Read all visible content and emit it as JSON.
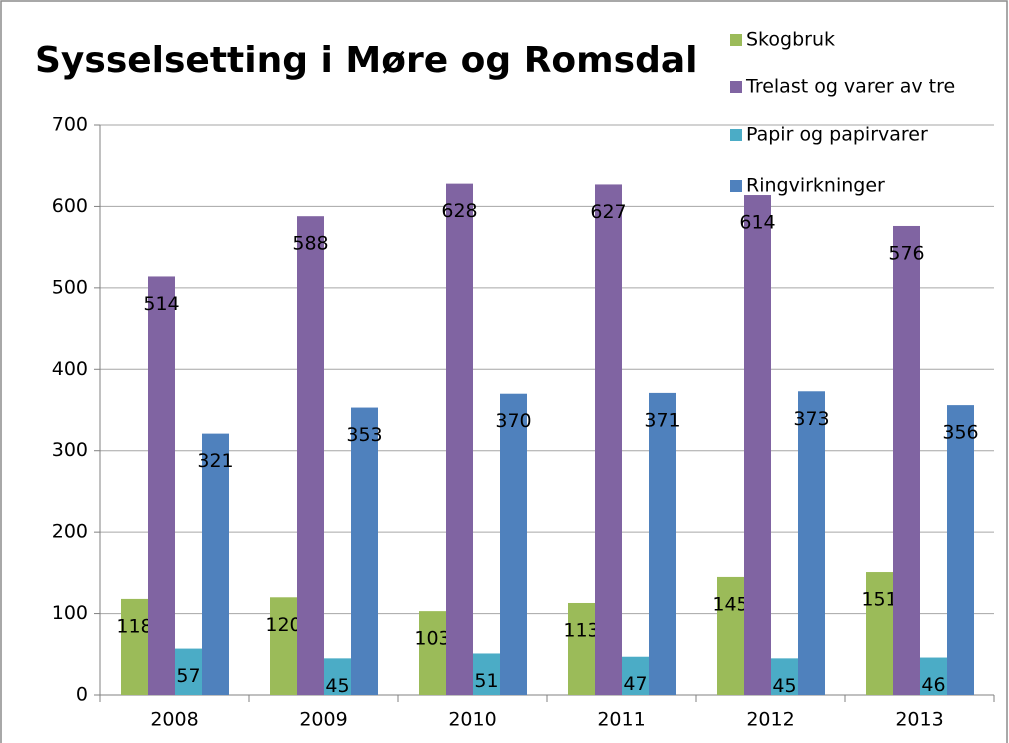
{
  "chart_data": {
    "type": "bar",
    "title": "Sysselsetting i Møre og Romsdal",
    "categories": [
      "2008",
      "2009",
      "2010",
      "2011",
      "2012",
      "2013"
    ],
    "series": [
      {
        "name": "Skogbruk",
        "color": "#9bbb59",
        "values": [
          118,
          120,
          103,
          113,
          145,
          151
        ]
      },
      {
        "name": "Trelast og varer av tre",
        "color": "#8064a2",
        "values": [
          514,
          588,
          628,
          627,
          614,
          576
        ]
      },
      {
        "name": "Papir og papirvarer",
        "color": "#4bacc6",
        "values": [
          57,
          45,
          51,
          47,
          45,
          46
        ]
      },
      {
        "name": "Ringvirkninger",
        "color": "#4f81bd",
        "values": [
          321,
          353,
          370,
          371,
          373,
          356
        ]
      }
    ],
    "ylim": [
      0,
      700
    ],
    "yticks": [
      0,
      100,
      200,
      300,
      400,
      500,
      600,
      700
    ],
    "grid": true
  }
}
